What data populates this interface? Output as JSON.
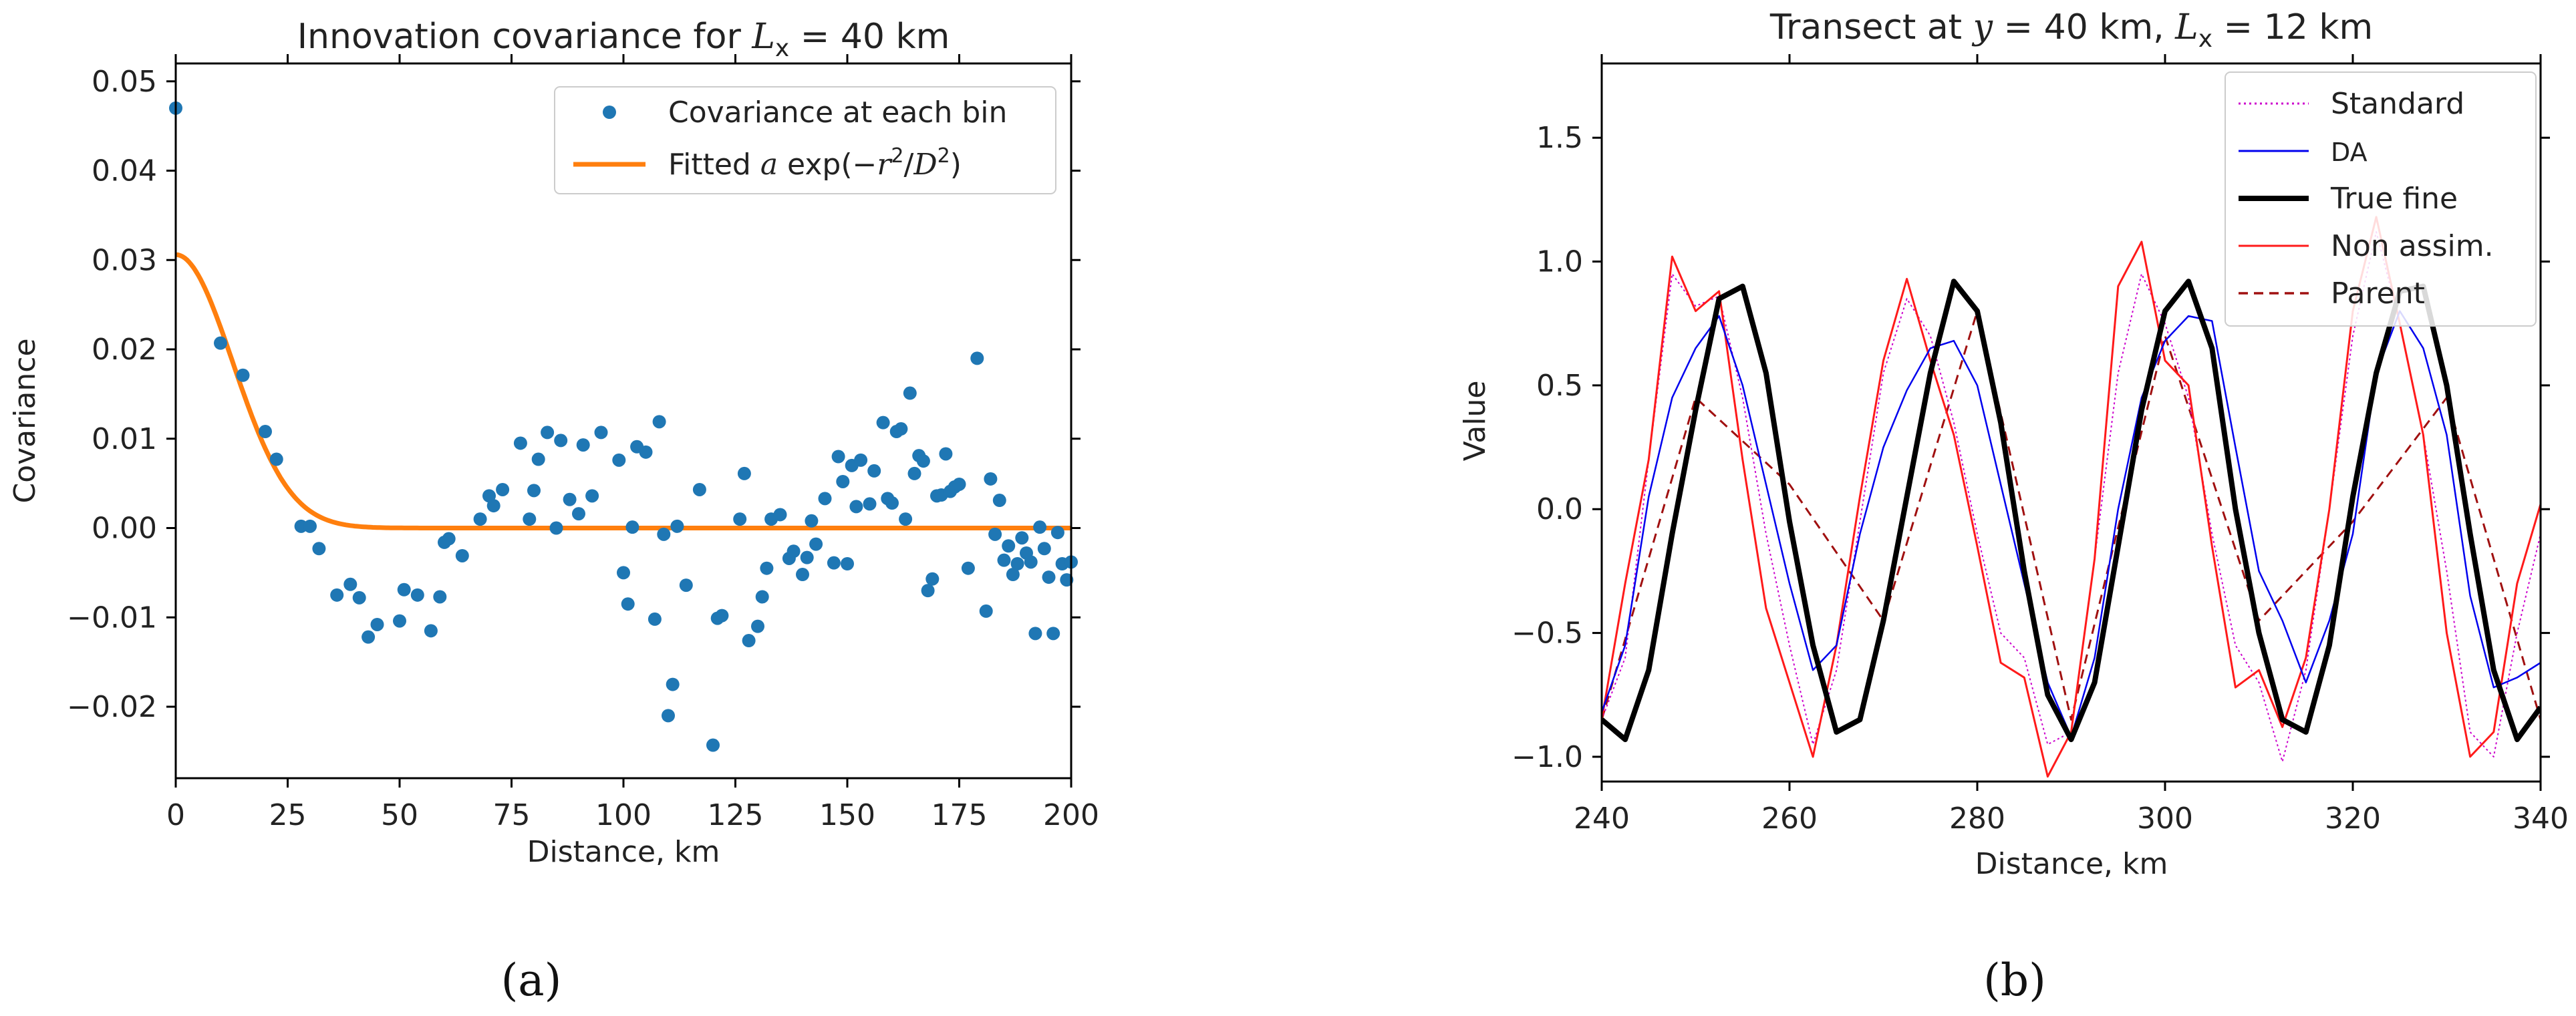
{
  "panel_labels": {
    "a": "(a)",
    "b": "(b)"
  },
  "chart_data": [
    {
      "type": "scatter",
      "title": "Innovation covariance for L_x = 40 km",
      "title_parts": {
        "prefix": "Innovation covariance for ",
        "math": "L",
        "sub": "x",
        "suffix": " = 40 km"
      },
      "xlabel": "Distance, km",
      "ylabel": "Covariance",
      "xlim": [
        0,
        200
      ],
      "ylim": [
        -0.028,
        0.052
      ],
      "xticks": [
        0,
        25,
        50,
        75,
        100,
        125,
        150,
        175,
        200
      ],
      "xtick_labels": [
        "0",
        "25",
        "50",
        "75",
        "100",
        "125",
        "150",
        "175",
        "200"
      ],
      "yticks": [
        -0.02,
        -0.01,
        0.0,
        0.01,
        0.02,
        0.03,
        0.04,
        0.05
      ],
      "ytick_labels": [
        "−0.02",
        "−0.01",
        "0.00",
        "0.01",
        "0.02",
        "0.03",
        "0.04",
        "0.05"
      ],
      "grid": false,
      "legend_position": "top-right",
      "legend": [
        {
          "label": "Covariance at each bin",
          "style": "marker"
        },
        {
          "label": "Fitted a exp(−r²/D²)",
          "style": "line",
          "text_parts": {
            "pre": "Fitted ",
            "a": "a",
            "mid": " exp(−",
            "r": "r",
            "sup1": "2",
            "slash": "/",
            "d": "D",
            "sup2": "2",
            "close": ")"
          }
        }
      ],
      "series": [
        {
          "name": "Covariance at each bin",
          "kind": "scatter",
          "color": "#1f77b4",
          "points": [
            [
              0,
              0.047
            ],
            [
              10,
              0.0207
            ],
            [
              15,
              0.0171
            ],
            [
              20,
              0.0108
            ],
            [
              22.5,
              0.0077
            ],
            [
              28,
              0.0002
            ],
            [
              30,
              0.0002
            ],
            [
              32,
              -0.0023
            ],
            [
              36,
              -0.0075
            ],
            [
              39,
              -0.0063
            ],
            [
              41,
              -0.0078
            ],
            [
              43,
              -0.0122
            ],
            [
              45,
              -0.0108
            ],
            [
              50,
              -0.0104
            ],
            [
              51,
              -0.0069
            ],
            [
              54,
              -0.0075
            ],
            [
              57,
              -0.0115
            ],
            [
              59,
              -0.0077
            ],
            [
              60,
              -0.0016
            ],
            [
              61,
              -0.0012
            ],
            [
              64,
              -0.0031
            ],
            [
              68,
              0.001
            ],
            [
              70,
              0.0036
            ],
            [
              71,
              0.0025
            ],
            [
              73,
              0.0043
            ],
            [
              77,
              0.0095
            ],
            [
              79,
              0.001
            ],
            [
              80,
              0.0042
            ],
            [
              81,
              0.0077
            ],
            [
              83,
              0.0107
            ],
            [
              85,
              0.0
            ],
            [
              86,
              0.0098
            ],
            [
              88,
              0.0032
            ],
            [
              90,
              0.0016
            ],
            [
              91,
              0.0093
            ],
            [
              93,
              0.0036
            ],
            [
              95,
              0.0107
            ],
            [
              99,
              0.0076
            ],
            [
              100,
              -0.005
            ],
            [
              101,
              -0.0085
            ],
            [
              102,
              0.0001
            ],
            [
              103,
              0.0091
            ],
            [
              105,
              0.0085
            ],
            [
              107,
              -0.0102
            ],
            [
              108,
              0.0119
            ],
            [
              109,
              -0.0007
            ],
            [
              110,
              -0.021
            ],
            [
              111,
              -0.0175
            ],
            [
              112,
              0.0002
            ],
            [
              114,
              -0.0064
            ],
            [
              117,
              0.0043
            ],
            [
              120,
              -0.0243
            ],
            [
              121,
              -0.0101
            ],
            [
              122,
              -0.0098
            ],
            [
              126,
              0.001
            ],
            [
              127,
              0.0061
            ],
            [
              128,
              -0.0126
            ],
            [
              130,
              -0.011
            ],
            [
              131,
              -0.0077
            ],
            [
              132,
              -0.0045
            ],
            [
              133,
              0.001
            ],
            [
              135,
              0.0015
            ],
            [
              137,
              -0.0034
            ],
            [
              138,
              -0.0026
            ],
            [
              140,
              -0.0052
            ],
            [
              141,
              -0.0033
            ],
            [
              142,
              0.0008
            ],
            [
              143,
              -0.0018
            ],
            [
              145,
              0.0033
            ],
            [
              147,
              -0.0039
            ],
            [
              148,
              0.008
            ],
            [
              149,
              0.0052
            ],
            [
              150,
              -0.004
            ],
            [
              151,
              0.007
            ],
            [
              152,
              0.0024
            ],
            [
              153,
              0.0076
            ],
            [
              155,
              0.0027
            ],
            [
              156,
              0.0064
            ],
            [
              158,
              0.0118
            ],
            [
              159,
              0.0033
            ],
            [
              160,
              0.0028
            ],
            [
              161,
              0.0108
            ],
            [
              162,
              0.0111
            ],
            [
              163,
              0.001
            ],
            [
              164,
              0.0151
            ],
            [
              165,
              0.0061
            ],
            [
              166,
              0.0081
            ],
            [
              167,
              0.0075
            ],
            [
              168,
              -0.007
            ],
            [
              169,
              -0.0057
            ],
            [
              170,
              0.0036
            ],
            [
              171,
              0.0037
            ],
            [
              172,
              0.0083
            ],
            [
              173,
              0.0041
            ],
            [
              174,
              0.0046
            ],
            [
              175,
              0.0049
            ],
            [
              177,
              -0.0045
            ],
            [
              179,
              0.019
            ],
            [
              181,
              -0.0093
            ],
            [
              182,
              0.0055
            ],
            [
              183,
              -0.0007
            ],
            [
              184,
              0.0031
            ],
            [
              185,
              -0.0036
            ],
            [
              186,
              -0.002
            ],
            [
              187,
              -0.0052
            ],
            [
              188,
              -0.004
            ],
            [
              189,
              -0.0011
            ],
            [
              190,
              -0.0028
            ],
            [
              191,
              -0.0038
            ],
            [
              192,
              -0.0118
            ],
            [
              193,
              0.0001
            ],
            [
              194,
              -0.0023
            ],
            [
              195,
              -0.0055
            ],
            [
              196,
              -0.0118
            ],
            [
              197,
              -0.0005
            ],
            [
              198,
              -0.004
            ],
            [
              199,
              -0.0058
            ],
            [
              200,
              -0.0038
            ]
          ]
        },
        {
          "name": "Fitted a exp(−r²/D²)",
          "kind": "function",
          "color": "#ff7f0e",
          "a": 0.0306,
          "D": 18
        }
      ]
    },
    {
      "type": "line",
      "title": "Transect at y = 40 km, L_x = 12 km",
      "title_parts": {
        "prefix": "Transect at ",
        "y": "y",
        "mid": " = 40 km, ",
        "L": "L",
        "sub": "x",
        "suffix": " = 12 km"
      },
      "xlabel": "Distance, km",
      "ylabel": "Value",
      "xlim": [
        240,
        340
      ],
      "ylim": [
        -1.1,
        1.8
      ],
      "xticks": [
        240,
        260,
        280,
        300,
        320,
        340
      ],
      "xtick_labels": [
        "240",
        "260",
        "280",
        "300",
        "320",
        "340"
      ],
      "yticks": [
        -1.0,
        -0.5,
        0.0,
        0.5,
        1.0,
        1.5
      ],
      "ytick_labels": [
        "−1.0",
        "−0.5",
        "0.0",
        "0.5",
        "1.0",
        "1.5"
      ],
      "grid": false,
      "legend_position": "top-right",
      "series": [
        {
          "name": "Standard",
          "color": "#cc00cc",
          "width": 2,
          "dash": "3,4",
          "x": [
            240,
            242.5,
            245,
            247.5,
            250,
            252.5,
            255,
            257.5,
            260,
            262.5,
            265,
            267.5,
            270,
            272.5,
            275,
            277.5,
            280,
            282.5,
            285,
            287.5,
            290,
            292.5,
            295,
            297.5,
            300,
            302.5,
            305,
            307.5,
            310,
            312.5,
            315,
            317.5,
            320,
            322.5,
            325,
            327.5,
            330,
            332.5,
            335,
            337.5,
            340
          ],
          "y": [
            -0.85,
            -0.6,
            0.2,
            0.95,
            0.82,
            0.86,
            0.45,
            -0.1,
            -0.55,
            -0.95,
            -0.65,
            -0.05,
            0.55,
            0.85,
            0.7,
            0.35,
            -0.1,
            -0.5,
            -0.6,
            -0.95,
            -0.9,
            -0.2,
            0.55,
            0.95,
            0.75,
            0.45,
            -0.1,
            -0.55,
            -0.7,
            -1.02,
            -0.65,
            0.0,
            0.7,
            1.12,
            0.75,
            0.3,
            -0.25,
            -0.9,
            -1.0,
            -0.5,
            -0.1
          ]
        },
        {
          "name": "DA",
          "color": "#0000ee",
          "width": 2.5,
          "dash": "",
          "x": [
            240,
            242.5,
            245,
            247.5,
            250,
            252.5,
            255,
            257.5,
            260,
            262.5,
            265,
            267.5,
            270,
            272.5,
            275,
            277.5,
            280,
            282.5,
            285,
            287.5,
            290,
            292.5,
            295,
            297.5,
            300,
            302.5,
            305,
            307.5,
            310,
            312.5,
            315,
            317.5,
            320,
            322.5,
            325,
            327.5,
            330,
            332.5,
            335,
            337.5,
            340
          ],
          "y": [
            -0.82,
            -0.55,
            0.05,
            0.45,
            0.65,
            0.78,
            0.5,
            0.1,
            -0.3,
            -0.65,
            -0.55,
            -0.1,
            0.25,
            0.48,
            0.65,
            0.68,
            0.5,
            0.1,
            -0.3,
            -0.7,
            -0.92,
            -0.6,
            0.0,
            0.45,
            0.68,
            0.78,
            0.76,
            0.25,
            -0.25,
            -0.45,
            -0.7,
            -0.45,
            -0.1,
            0.55,
            0.8,
            0.65,
            0.3,
            -0.35,
            -0.72,
            -0.68,
            -0.62
          ]
        },
        {
          "name": "True fine",
          "color": "#000000",
          "width": 8,
          "dash": "",
          "x": [
            240,
            242.5,
            245,
            247.5,
            250,
            252.5,
            255,
            257.5,
            260,
            262.5,
            265,
            267.5,
            270,
            272.5,
            275,
            277.5,
            280,
            282.5,
            285,
            287.5,
            290,
            292.5,
            295,
            297.5,
            300,
            302.5,
            305,
            307.5,
            310,
            312.5,
            315,
            317.5,
            320,
            322.5,
            325,
            327.5,
            330,
            332.5,
            335,
            337.5,
            340
          ],
          "y": [
            -0.85,
            -0.93,
            -0.65,
            -0.1,
            0.4,
            0.85,
            0.9,
            0.55,
            -0.05,
            -0.55,
            -0.9,
            -0.85,
            -0.45,
            0.05,
            0.55,
            0.92,
            0.8,
            0.35,
            -0.25,
            -0.75,
            -0.93,
            -0.7,
            -0.15,
            0.4,
            0.8,
            0.92,
            0.65,
            0.0,
            -0.5,
            -0.85,
            -0.9,
            -0.55,
            0.05,
            0.55,
            0.88,
            0.9,
            0.5,
            -0.1,
            -0.65,
            -0.93,
            -0.8
          ]
        },
        {
          "name": "Non assim.",
          "color": "#ff1a1a",
          "width": 3,
          "dash": "",
          "x": [
            240,
            242.5,
            245,
            247.5,
            250,
            252.5,
            255,
            257.5,
            260,
            262.5,
            265,
            267.5,
            270,
            272.5,
            275,
            277.5,
            280,
            282.5,
            285,
            287.5,
            290,
            292.5,
            295,
            297.5,
            300,
            302.5,
            305,
            307.5,
            310,
            312.5,
            315,
            317.5,
            320,
            322.5,
            325,
            327.5,
            330,
            332.5,
            335,
            337.5,
            340
          ],
          "y": [
            -0.85,
            -0.3,
            0.2,
            1.02,
            0.8,
            0.88,
            0.2,
            -0.4,
            -0.7,
            -1.0,
            -0.55,
            0.05,
            0.6,
            0.93,
            0.6,
            0.3,
            -0.15,
            -0.62,
            -0.68,
            -1.08,
            -0.9,
            -0.2,
            0.9,
            1.08,
            0.6,
            0.5,
            -0.15,
            -0.72,
            -0.65,
            -0.88,
            -0.6,
            0.0,
            0.8,
            1.18,
            0.75,
            0.3,
            -0.5,
            -1.0,
            -0.9,
            -0.3,
            0.02
          ]
        },
        {
          "name": "Parent",
          "color": "#a01010",
          "width": 3,
          "dash": "14,9",
          "x": [
            240,
            250,
            260,
            270,
            280,
            290,
            300,
            310,
            320,
            330,
            340
          ],
          "y": [
            -0.85,
            0.45,
            0.1,
            -0.45,
            0.8,
            -0.85,
            0.7,
            -0.45,
            -0.05,
            0.45,
            -0.85
          ]
        }
      ]
    }
  ]
}
